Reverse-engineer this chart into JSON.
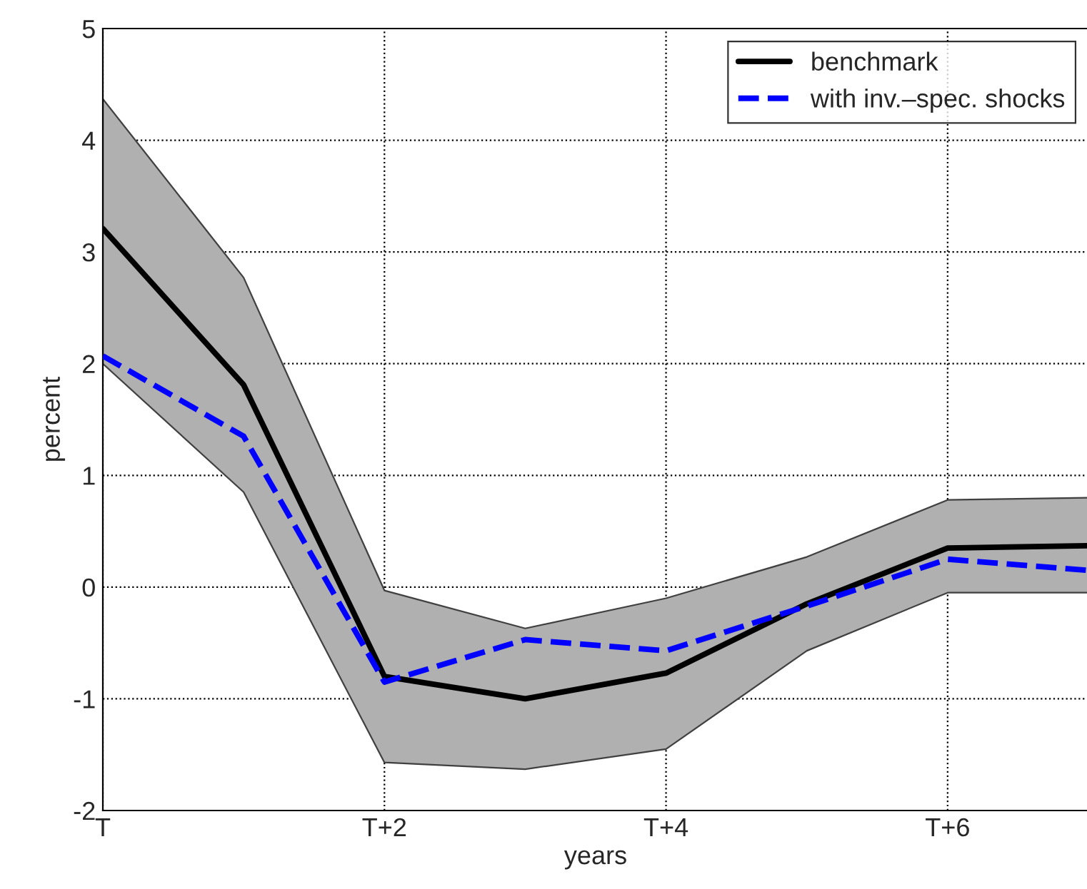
{
  "chart_data": {
    "type": "line",
    "xlabel": "years",
    "ylabel": "percent",
    "categories": [
      "T",
      null,
      "T+2",
      null,
      "T+4",
      null,
      "T+6",
      null
    ],
    "series": [
      {
        "name": "benchmark",
        "color": "#000000",
        "line_style": "solid",
        "values": [
          3.21,
          1.81,
          -0.8,
          -1.0,
          -0.77,
          -0.15,
          0.35,
          0.37
        ],
        "lower": [
          2.0,
          0.85,
          -1.57,
          -1.63,
          -1.45,
          -0.57,
          -0.05,
          -0.05
        ],
        "upper": [
          4.37,
          2.77,
          -0.03,
          -0.37,
          -0.1,
          0.27,
          0.78,
          0.8
        ]
      },
      {
        "name": "with inv.–spec. shocks",
        "color": "#0000ff",
        "line_style": "dashed",
        "values": [
          2.07,
          1.35,
          -0.85,
          -0.47,
          -0.57,
          -0.17,
          0.25,
          0.15
        ]
      }
    ],
    "ylim": [
      -2,
      5
    ],
    "yticks": [
      -2,
      -1,
      0,
      1,
      2,
      3,
      4,
      5
    ],
    "grid": true,
    "legend": "top right",
    "marker": "none"
  }
}
